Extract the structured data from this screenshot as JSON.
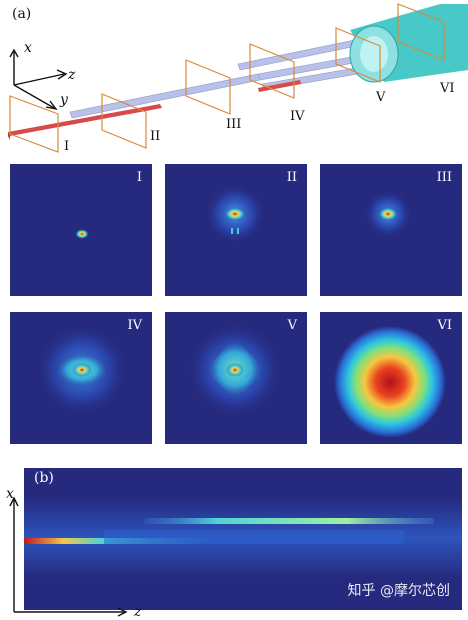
{
  "panel_a_label": "(a)",
  "panel_b_label": "(b)",
  "axis_a": {
    "x": "x",
    "y": "y",
    "z": "z"
  },
  "axis_b": {
    "x": "x",
    "z": "z"
  },
  "planes": [
    "I",
    "II",
    "III",
    "IV",
    "V",
    "VI"
  ],
  "watermark": "知乎 @摩尔芯创",
  "colors": {
    "field_bg": "#262a7e",
    "plane": "#d98a3a",
    "waveguide": "#b9c1e8",
    "input_guide": "#d64a4a",
    "fiber": "#49c8c8"
  }
}
